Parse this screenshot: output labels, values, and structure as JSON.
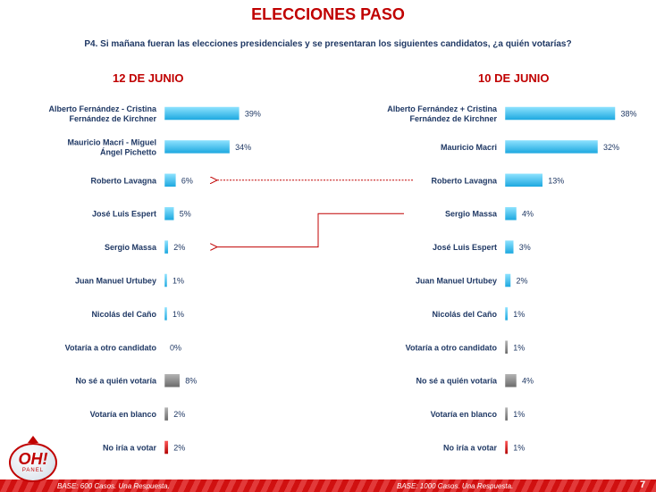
{
  "title": "ELECCIONES PASO",
  "question": "P4. Si mañana fueran las elecciones presidenciales y se presentaran los siguientes candidatos, ¿a quién votarías?",
  "footer": {
    "left_base": "BASE: 600 Casos. Una Respuesta.",
    "right_base": "BASE: 1000 Casos. Una Respuesta.",
    "page": "7"
  },
  "logo": {
    "text": "OH!",
    "sub": "PANEL"
  },
  "colors": {
    "blue": "#2fbfee",
    "gray": "#7f7f7f",
    "red": "#c00000",
    "arrow": "#c00000"
  },
  "chart_data": [
    {
      "type": "bar",
      "title": "12 DE JUNIO",
      "orientation": "horizontal",
      "categories": [
        [
          "Alberto Fernández - Cristina",
          "Fernández de Kirchner"
        ],
        [
          "Mauricio Macri - Miguel",
          "Ángel Pichetto"
        ],
        [
          "Roberto Lavagna"
        ],
        [
          "José Luis Espert"
        ],
        [
          "Sergio Massa"
        ],
        [
          "Juan Manuel Urtubey"
        ],
        [
          "Nicolás del Caño"
        ],
        [
          "Votaría a otro candidato"
        ],
        [
          "No sé a quién votaría"
        ],
        [
          "Votaría en blanco"
        ],
        [
          "No iría a votar"
        ]
      ],
      "values": [
        39,
        34,
        6,
        5,
        2,
        1,
        1,
        0,
        8,
        2,
        2
      ],
      "labels": [
        "39%",
        "34%",
        "6%",
        "5%",
        "2%",
        "1%",
        "1%",
        "0%",
        "8%",
        "2%",
        "2%"
      ],
      "bar_colors": [
        "blue",
        "blue",
        "blue",
        "blue",
        "blue",
        "blue",
        "blue",
        "gray",
        "gray",
        "gray",
        "red"
      ],
      "xlim": [
        0,
        40
      ]
    },
    {
      "type": "bar",
      "title": "10 DE JUNIO",
      "orientation": "horizontal",
      "categories": [
        [
          "Alberto Fernández + Cristina",
          "Fernández de Kirchner"
        ],
        [
          "Mauricio Macri"
        ],
        [
          "Roberto Lavagna"
        ],
        [
          "Sergio Massa"
        ],
        [
          "José Luis Espert"
        ],
        [
          "Juan Manuel Urtubey"
        ],
        [
          "Nicolás del Caño"
        ],
        [
          "Votaría a otro candidato"
        ],
        [
          "No sé a quién votaría"
        ],
        [
          "Votaría en blanco"
        ],
        [
          "No iría a votar"
        ]
      ],
      "values": [
        38,
        32,
        13,
        4,
        3,
        2,
        1,
        1,
        4,
        1,
        1
      ],
      "labels": [
        "38%",
        "32%",
        "13%",
        "4%",
        "3%",
        "2%",
        "1%",
        "1%",
        "4%",
        "1%",
        "1%"
      ],
      "bar_colors": [
        "blue",
        "blue",
        "blue",
        "blue",
        "blue",
        "blue",
        "blue",
        "gray",
        "gray",
        "gray",
        "red"
      ],
      "xlim": [
        0,
        40
      ]
    }
  ],
  "connectors": [
    {
      "from_chart": 1,
      "from_row": 2,
      "to_chart": 0,
      "to_row": 2
    },
    {
      "from_chart": 1,
      "from_row": 3,
      "to_chart": 0,
      "to_row": 4
    }
  ]
}
